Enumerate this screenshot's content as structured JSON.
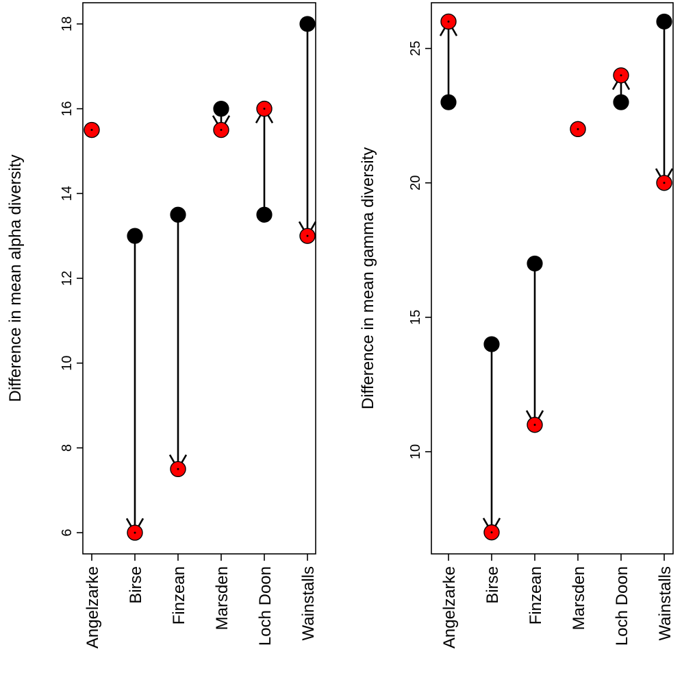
{
  "chart_data": [
    {
      "type": "scatter",
      "ylabel": "Difference in mean alpha diversity",
      "categories": [
        "Angelzarke",
        "Birse",
        "Finzean",
        "Marsden",
        "Loch Doon",
        "Wainstalls"
      ],
      "ylim": [
        5.5,
        18.5
      ],
      "yticks": [
        6,
        8,
        10,
        12,
        14,
        16,
        18
      ],
      "series": [
        {
          "values": [
            15.5,
            13,
            13.5,
            16,
            13.5,
            18
          ],
          "color": "#000000"
        },
        {
          "values": [
            15.5,
            6,
            7.5,
            15.5,
            16,
            13
          ],
          "color": "#ff0000"
        }
      ]
    },
    {
      "type": "scatter",
      "ylabel": "Difference in mean gamma diversity",
      "categories": [
        "Angelzarke",
        "Birse",
        "Finzean",
        "Marsden",
        "Loch Doon",
        "Wainstalls"
      ],
      "ylim": [
        6.2,
        26.7
      ],
      "yticks": [
        10,
        15,
        20,
        25
      ],
      "series": [
        {
          "values": [
            23,
            14,
            17,
            22,
            23,
            26
          ],
          "color": "#000000"
        },
        {
          "values": [
            26,
            7,
            11,
            22,
            24,
            20
          ],
          "color": "#ff0000"
        }
      ]
    }
  ]
}
